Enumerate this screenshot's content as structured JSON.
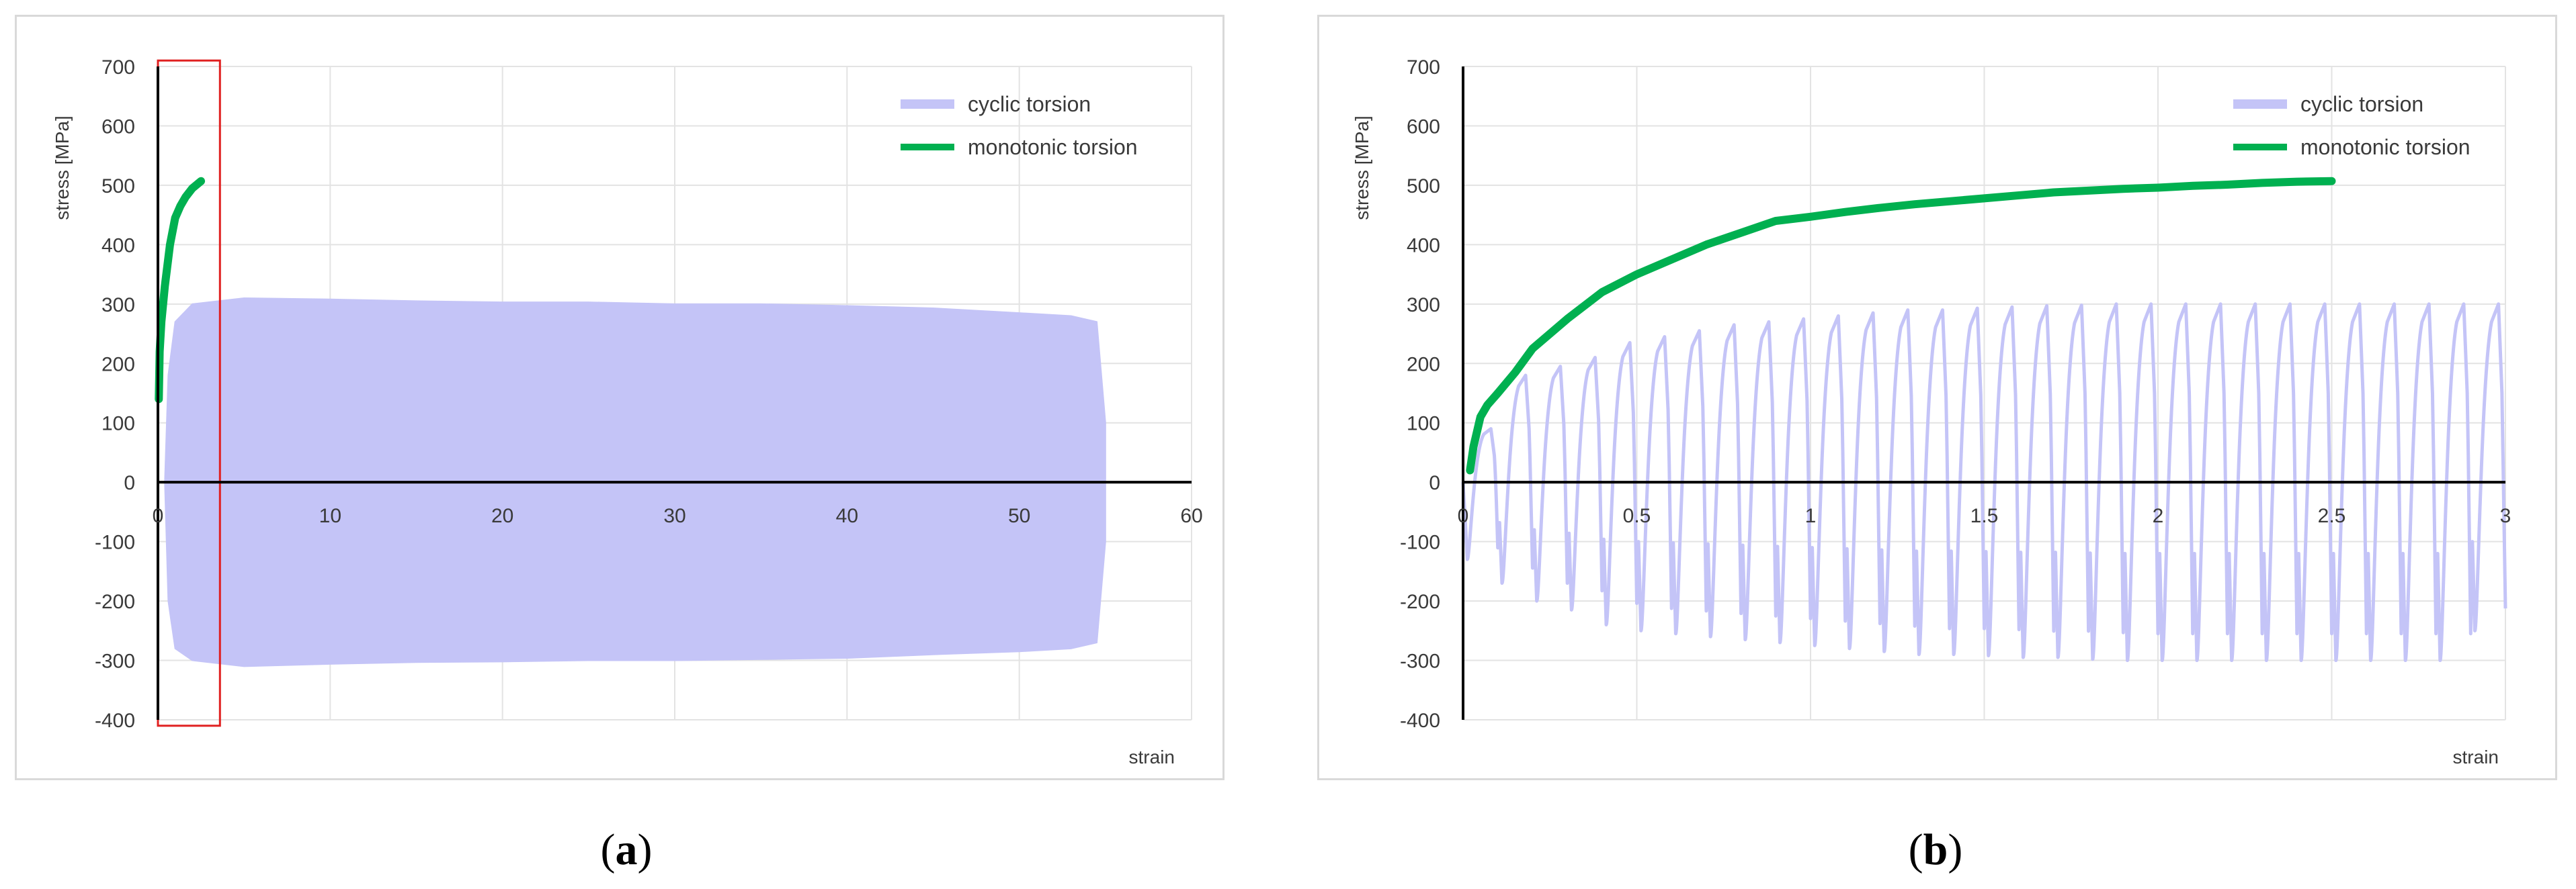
{
  "chart_data": [
    {
      "panel": "a",
      "type": "line",
      "xlabel": "strain",
      "ylabel": "stress  [MPa]",
      "xlim": [
        0,
        60
      ],
      "ylim": [
        -400,
        700
      ],
      "x_ticks": [
        0,
        10,
        20,
        30,
        40,
        50,
        60
      ],
      "y_ticks": [
        -400,
        -300,
        -200,
        -100,
        0,
        100,
        200,
        300,
        400,
        500,
        600,
        700
      ],
      "grid": true,
      "legend_position": "top-right",
      "highlight_box": {
        "x_range": [
          0,
          3.6
        ],
        "y_range": [
          -410,
          710
        ],
        "color": "#e02020"
      },
      "series": [
        {
          "name": "cyclic torsion",
          "color": "#c4c4f7",
          "style": "filled-band",
          "x_end": 55,
          "upper": [
            [
              0.4,
              0
            ],
            [
              0.6,
              180
            ],
            [
              1,
              270
            ],
            [
              2,
              300
            ],
            [
              5,
              310
            ],
            [
              10,
              308
            ],
            [
              15,
              305
            ],
            [
              20,
              303
            ],
            [
              25,
              303
            ],
            [
              30,
              300
            ],
            [
              35,
              300
            ],
            [
              40,
              297
            ],
            [
              45,
              293
            ],
            [
              50,
              285
            ],
            [
              53,
              280
            ],
            [
              54.5,
              270
            ],
            [
              55,
              100
            ]
          ],
          "lower": [
            [
              0.4,
              0
            ],
            [
              0.6,
              -200
            ],
            [
              1,
              -280
            ],
            [
              2,
              -300
            ],
            [
              5,
              -310
            ],
            [
              10,
              -306
            ],
            [
              15,
              -303
            ],
            [
              20,
              -302
            ],
            [
              25,
              -300
            ],
            [
              30,
              -300
            ],
            [
              35,
              -298
            ],
            [
              40,
              -296
            ],
            [
              45,
              -290
            ],
            [
              50,
              -285
            ],
            [
              53,
              -280
            ],
            [
              54.5,
              -270
            ],
            [
              55,
              -100
            ]
          ]
        },
        {
          "name": "monotonic torsion",
          "color": "#00b050",
          "style": "line",
          "points": [
            [
              0.05,
              140
            ],
            [
              0.1,
              220
            ],
            [
              0.2,
              270
            ],
            [
              0.4,
              330
            ],
            [
              0.7,
              400
            ],
            [
              1.0,
              445
            ],
            [
              1.3,
              465
            ],
            [
              1.6,
              480
            ],
            [
              2.0,
              495
            ],
            [
              2.5,
              507
            ]
          ]
        }
      ]
    },
    {
      "panel": "b",
      "type": "line",
      "xlabel": "strain",
      "ylabel": "stress  [MPa]",
      "xlim": [
        0,
        3
      ],
      "ylim": [
        -400,
        700
      ],
      "x_ticks": [
        0,
        0.5,
        1,
        1.5,
        2,
        2.5,
        3
      ],
      "y_ticks": [
        -400,
        -300,
        -200,
        -100,
        0,
        100,
        200,
        300,
        400,
        500,
        600,
        700
      ],
      "grid": true,
      "legend_position": "top-right",
      "series": [
        {
          "name": "cyclic torsion",
          "color": "#c4c4f7",
          "style": "line",
          "cycle_count": 30,
          "cycle_strain_step": 0.1,
          "cycle_peaks": [
            90,
            180,
            195,
            210,
            235,
            245,
            255,
            265,
            270,
            275,
            280,
            285,
            290,
            290,
            293,
            295,
            297,
            298,
            300,
            300,
            300,
            300,
            300,
            300,
            300,
            300,
            300,
            300,
            300,
            300
          ],
          "cycle_troughs": [
            -130,
            -170,
            -200,
            -215,
            -240,
            -250,
            -255,
            -260,
            -265,
            -270,
            -275,
            -280,
            -285,
            -290,
            -290,
            -292,
            -295,
            -295,
            -298,
            -300,
            -300,
            -300,
            -300,
            -300,
            -300,
            -300,
            -300,
            -300,
            -300,
            -250
          ]
        },
        {
          "name": "monotonic torsion",
          "color": "#00b050",
          "style": "line",
          "points": [
            [
              0.02,
              20
            ],
            [
              0.03,
              60
            ],
            [
              0.05,
              110
            ],
            [
              0.07,
              130
            ],
            [
              0.1,
              150
            ],
            [
              0.15,
              185
            ],
            [
              0.2,
              225
            ],
            [
              0.3,
              275
            ],
            [
              0.4,
              320
            ],
            [
              0.5,
              350
            ],
            [
              0.6,
              375
            ],
            [
              0.7,
              400
            ],
            [
              0.8,
              420
            ],
            [
              0.9,
              440
            ],
            [
              1.0,
              447
            ],
            [
              1.1,
              455
            ],
            [
              1.2,
              462
            ],
            [
              1.3,
              468
            ],
            [
              1.4,
              473
            ],
            [
              1.5,
              478
            ],
            [
              1.6,
              483
            ],
            [
              1.7,
              488
            ],
            [
              1.8,
              491
            ],
            [
              1.9,
              494
            ],
            [
              2.0,
              496
            ],
            [
              2.1,
              499
            ],
            [
              2.2,
              501
            ],
            [
              2.3,
              504
            ],
            [
              2.4,
              506
            ],
            [
              2.5,
              507
            ]
          ]
        }
      ]
    }
  ],
  "captions": [
    {
      "open": "(",
      "letter": "a",
      "close": ")"
    },
    {
      "open": "(",
      "letter": "b",
      "close": ")"
    }
  ]
}
